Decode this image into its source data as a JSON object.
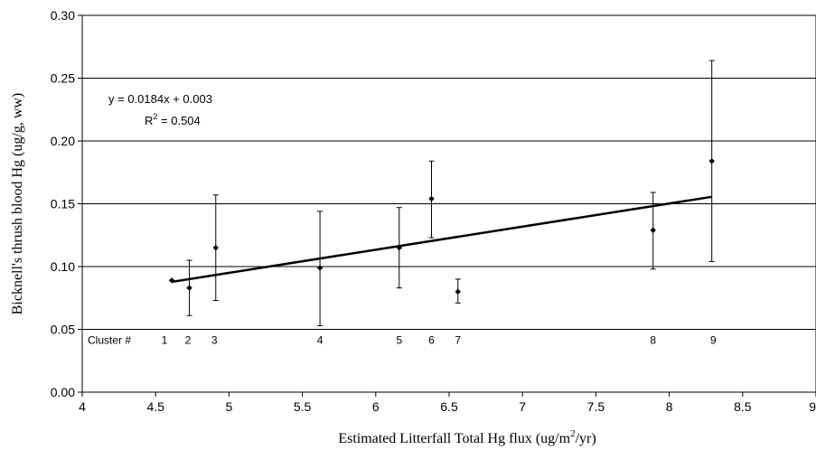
{
  "chart_data": {
    "type": "scatter",
    "title": "",
    "xlabel": "Estimated Litterfall Total Hg flux (ug/m",
    "xlabel_sup": "2",
    "xlabel_suffix": "/yr)",
    "ylabel": "Bicknell's thrush blood Hg (ug/g, ww)",
    "xlim": [
      4,
      9
    ],
    "ylim": [
      0.0,
      0.3
    ],
    "xticks": [
      "4",
      "4.5",
      "5",
      "5.5",
      "6",
      "6.5",
      "7",
      "7.5",
      "8",
      "8.5",
      "9"
    ],
    "yticks": [
      "0.00",
      "0.05",
      "0.10",
      "0.15",
      "0.20",
      "0.25",
      "0.30"
    ],
    "grid": "horizontal",
    "points": [
      {
        "x": 4.61,
        "y": 0.089,
        "err_low": 0.089,
        "err_high": 0.089
      },
      {
        "x": 4.73,
        "y": 0.083,
        "err_low": 0.061,
        "err_high": 0.105
      },
      {
        "x": 4.91,
        "y": 0.115,
        "err_low": 0.073,
        "err_high": 0.157
      },
      {
        "x": 5.62,
        "y": 0.099,
        "err_low": 0.053,
        "err_high": 0.144
      },
      {
        "x": 6.16,
        "y": 0.115,
        "err_low": 0.083,
        "err_high": 0.147
      },
      {
        "x": 6.38,
        "y": 0.154,
        "err_low": 0.123,
        "err_high": 0.184
      },
      {
        "x": 6.56,
        "y": 0.08,
        "err_low": 0.071,
        "err_high": 0.09
      },
      {
        "x": 7.89,
        "y": 0.129,
        "err_low": 0.098,
        "err_high": 0.159
      },
      {
        "x": 8.29,
        "y": 0.184,
        "err_low": 0.104,
        "err_high": 0.264
      }
    ],
    "trendline": {
      "slope": 0.0184,
      "intercept": 0.003,
      "x_start": 4.61,
      "x_end": 8.29
    },
    "equation": "y = 0.0184x + 0.003",
    "r2_prefix": "R",
    "r2_sup": "2",
    "r2_suffix": " = 0.504",
    "cluster_row_label": "Cluster #",
    "cluster_row_y": 0.042,
    "clusters": [
      {
        "label": "1",
        "x": 4.56
      },
      {
        "label": "2",
        "x": 4.72
      },
      {
        "label": "3",
        "x": 4.9
      },
      {
        "label": "4",
        "x": 5.62
      },
      {
        "label": "5",
        "x": 6.16
      },
      {
        "label": "6",
        "x": 6.38
      },
      {
        "label": "7",
        "x": 6.56
      },
      {
        "label": "8",
        "x": 7.89
      },
      {
        "label": "9",
        "x": 8.3
      }
    ]
  }
}
